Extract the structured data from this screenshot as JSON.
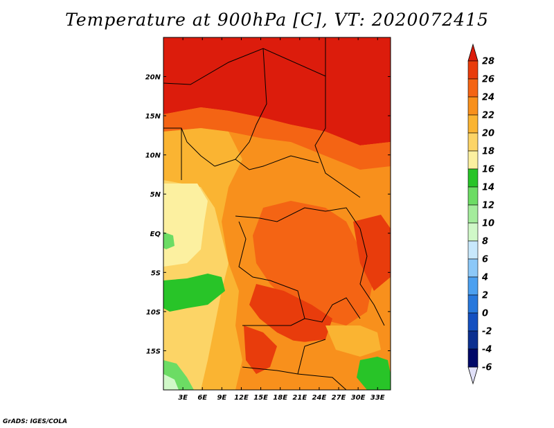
{
  "title": "Temperature at 900hPa [C], VT: 2020072415",
  "credit": "GrADS: IGES/COLA",
  "map": {
    "lon_range": [
      0,
      35
    ],
    "lat_range": [
      -20,
      25
    ],
    "lon_ticks": [
      "3E",
      "6E",
      "9E",
      "12E",
      "15E",
      "18E",
      "21E",
      "24E",
      "27E",
      "30E",
      "33E"
    ],
    "lat_ticks": [
      "20N",
      "15N",
      "10N",
      "5N",
      "EQ",
      "5S",
      "10S",
      "15S"
    ]
  },
  "colorbar": {
    "labels": [
      "28",
      "26",
      "24",
      "22",
      "20",
      "18",
      "16",
      "14",
      "12",
      "10",
      "8",
      "6",
      "4",
      "2",
      "0",
      "-2",
      "-4",
      "-6"
    ],
    "colors": [
      "#dc1c0c",
      "#e83c0c",
      "#f46414",
      "#f8901c",
      "#fab432",
      "#fcd466",
      "#fcf0a0",
      "#28c428",
      "#6cdc64",
      "#a4ec9c",
      "#d0f8c8",
      "#c8e8fc",
      "#8cc8f8",
      "#4ca0f0",
      "#2878dc",
      "#1450c0",
      "#0c3090",
      "#000868"
    ],
    "top_color": "#dc1c0c",
    "bottom_color": "#e0e0f8"
  }
}
